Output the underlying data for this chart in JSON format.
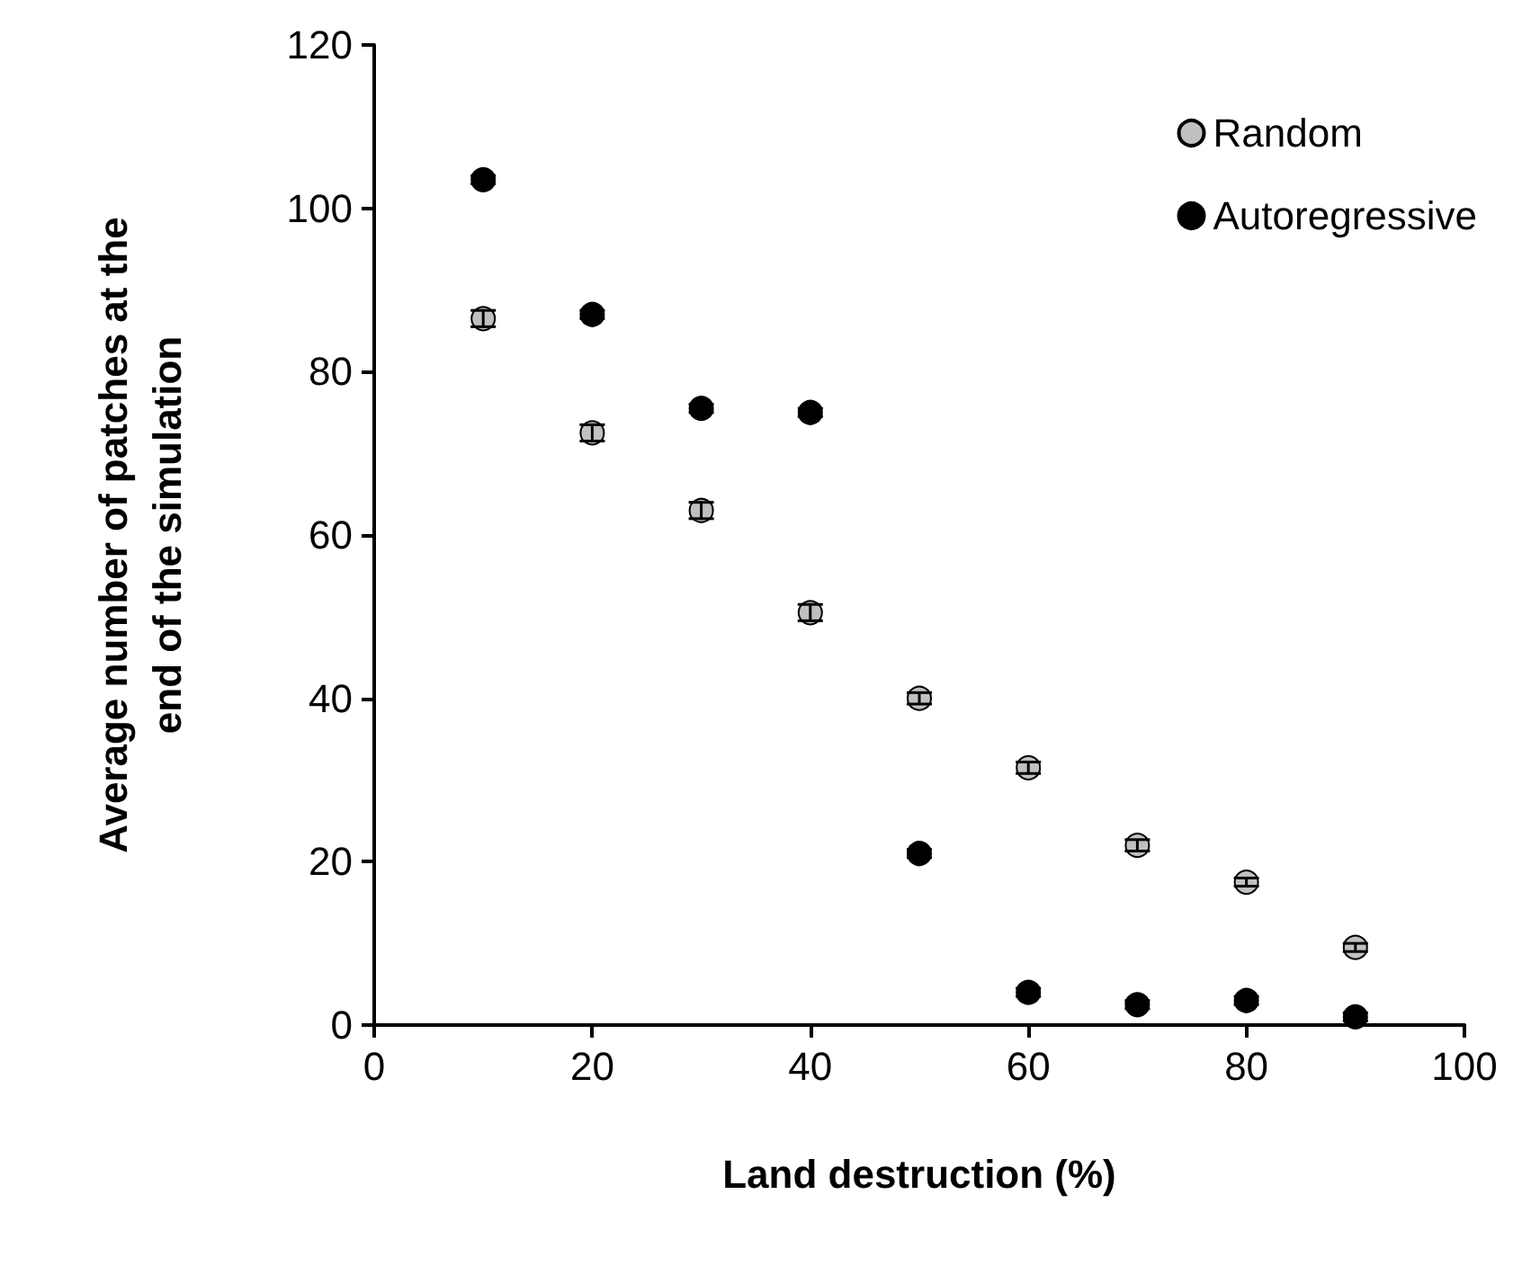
{
  "chart_data": {
    "type": "scatter",
    "xlabel": "Land destruction (%)",
    "ylabel": "Average number of patches at the\nend of the simulation",
    "x": [
      10,
      20,
      30,
      40,
      50,
      60,
      70,
      80,
      90
    ],
    "series": [
      {
        "name": "Random",
        "color": "#c0c0c0",
        "values": [
          86.5,
          72.5,
          63,
          50.5,
          40,
          31.5,
          22,
          17.5,
          9.5
        ],
        "errors": [
          1,
          1,
          1,
          1,
          0.7,
          0.7,
          0.7,
          0.5,
          0.5
        ]
      },
      {
        "name": "Autoregressive",
        "color": "#000000",
        "values": [
          103.5,
          87,
          75.5,
          75,
          21,
          4,
          2.5,
          3,
          1
        ],
        "errors": [
          0.5,
          0.5,
          0.5,
          0.5,
          0.5,
          0.5,
          0.5,
          0.5,
          0.5
        ]
      }
    ],
    "xlim": [
      0,
      100
    ],
    "xticks": [
      0,
      20,
      40,
      60,
      80,
      100
    ],
    "ylim": [
      0,
      120
    ],
    "yticks": [
      0,
      20,
      40,
      60,
      80,
      100,
      120
    ],
    "grid": false,
    "legend": "top right",
    "marker": "circle"
  }
}
